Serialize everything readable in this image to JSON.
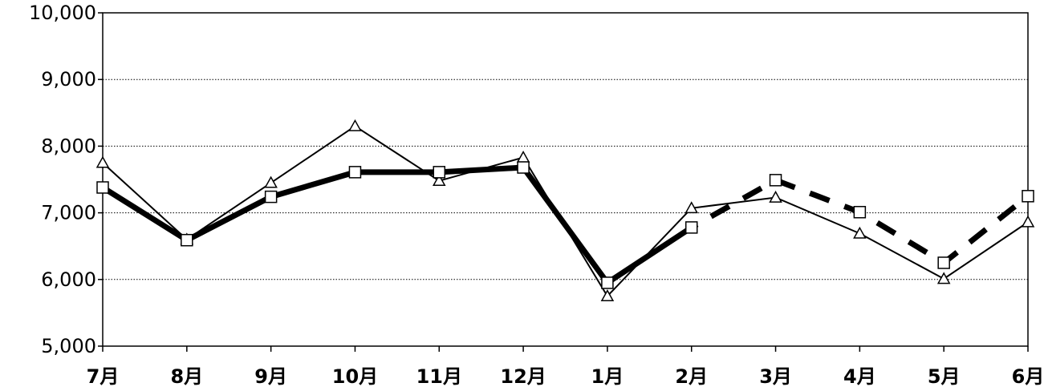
{
  "chart_data": {
    "type": "line",
    "categories": [
      "7月",
      "8月",
      "9月",
      "10月",
      "11月",
      "12月",
      "1月",
      "2月",
      "3月",
      "4月",
      "5月",
      "6月"
    ],
    "ylim": [
      5000,
      10000
    ],
    "yticks": [
      "5,000",
      "6,000",
      "7,000",
      "8,000",
      "9,000",
      "10,000"
    ],
    "ytick_values": [
      5000,
      6000,
      7000,
      8000,
      9000,
      10000
    ],
    "grid": true,
    "series": [
      {
        "marker": "triangle",
        "line": "thin-solid",
        "color": "#000000",
        "values": [
          7750,
          6600,
          7450,
          8300,
          7480,
          7830,
          5750,
          7070,
          7230,
          6690,
          6010,
          6860
        ]
      },
      {
        "marker": "square",
        "line": "thick-solid-then-dashed",
        "color": "#000000",
        "values": [
          7380,
          6590,
          7240,
          7610,
          7610,
          7680,
          5950,
          6780,
          7490,
          7010,
          6250,
          7250
        ]
      }
    ]
  }
}
